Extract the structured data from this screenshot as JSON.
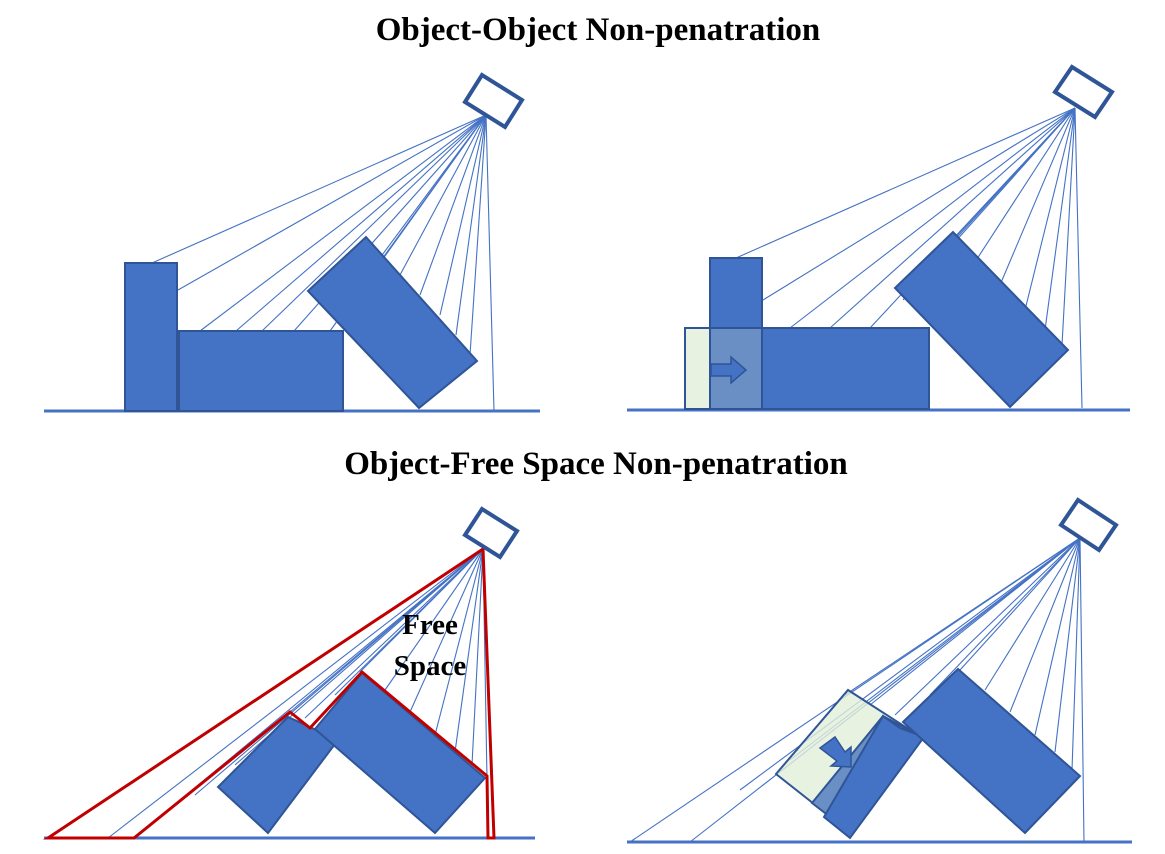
{
  "titles": {
    "top": "Object-Object Non-penatration",
    "bottom": "Object-Free Space Non-penatration"
  },
  "free_space_label": [
    "Free",
    "Space"
  ],
  "colors": {
    "block": "#4472c4",
    "outline": "#2f5597",
    "ghost": "#e2efda",
    "free_space": "#c00000"
  },
  "icons": {
    "sensor": "depth-camera-icon",
    "shift": "arrow-icon"
  }
}
